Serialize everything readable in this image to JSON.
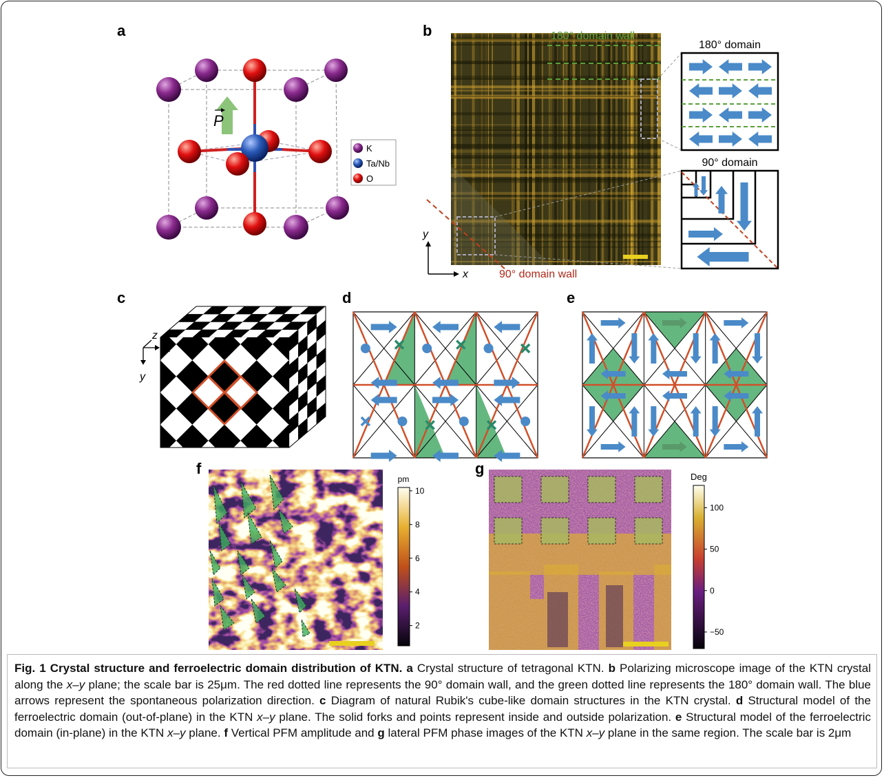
{
  "panel_labels": [
    "a",
    "b",
    "c",
    "d",
    "e",
    "f",
    "g"
  ],
  "panel_a": {
    "vector_label": "P",
    "legend": [
      "K",
      "Ta/Nb",
      "O"
    ]
  },
  "panel_b": {
    "wall_180": "180° domain wall",
    "wall_90": "90° domain wall",
    "domain_180": "180° domain",
    "domain_90": "90° domain",
    "axes": [
      "y",
      "x"
    ]
  },
  "panel_c": {
    "axes": [
      "z",
      "x",
      "y"
    ]
  },
  "panel_f": {
    "unit": "pm",
    "range": [
      0.8,
      10.2
    ],
    "ticks": [
      10,
      8,
      6,
      4,
      2
    ]
  },
  "panel_g": {
    "unit": "Deg",
    "range": [
      -70,
      127
    ],
    "ticks": [
      100,
      50,
      0,
      {
        "value": -50,
        "label": "−50"
      }
    ]
  },
  "caption": {
    "segments": [
      "Fig. 1 Crystal structure and ferroelectric domain distribution of KTN.",
      "a",
      "Crystal structure of tetragonal KTN.",
      "b",
      "Polarizing microscope image of the KTN crystal along the",
      "x–y",
      "plane; the scale bar is 25μm. The red dotted line represents the 90° domain wall, and the green dotted line represents the 180° domain wall. The blue arrows represent the spontaneous polarization direction.",
      "c",
      "Diagram of natural Rubik's cube-like domain structures in the KTN crystal.",
      "d",
      "Structural model of the ferroelectric domain (out-of-plane) in the KTN",
      "x–y",
      "plane. The solid forks and points represent inside and outside polarization.",
      "e",
      "Structural model of the ferroelectric domain (in-plane) in the KTN",
      "x–y",
      "plane.",
      "f",
      "Vertical PFM amplitude and",
      "g",
      "lateral PFM phase images of the KTN",
      "x–y",
      "plane in the same region. The scale bar is 2μm"
    ]
  }
}
